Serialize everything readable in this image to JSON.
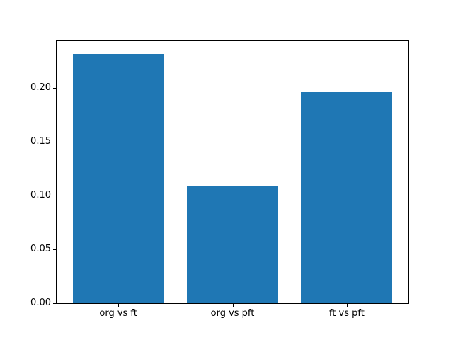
{
  "chart_data": {
    "type": "bar",
    "title": "",
    "xlabel": "",
    "ylabel": "",
    "categories": [
      "org vs ft",
      "org vs pft",
      "ft vs pft"
    ],
    "values": [
      0.232,
      0.109,
      0.196
    ],
    "ylim": [
      0,
      0.2436
    ],
    "ytick_values": [
      0,
      0.05,
      0.1,
      0.15,
      0.2
    ],
    "ytick_labels": [
      "0.00",
      "0.05",
      "0.10",
      "0.15",
      "0.20"
    ],
    "bar_width_fraction": 0.8,
    "grid": false,
    "legend_position": "none",
    "bar_color": "#1f77b4",
    "spine_color": "#000000",
    "tick_color": "#000000",
    "text_color": "#000000",
    "background_color": "#ffffff"
  }
}
